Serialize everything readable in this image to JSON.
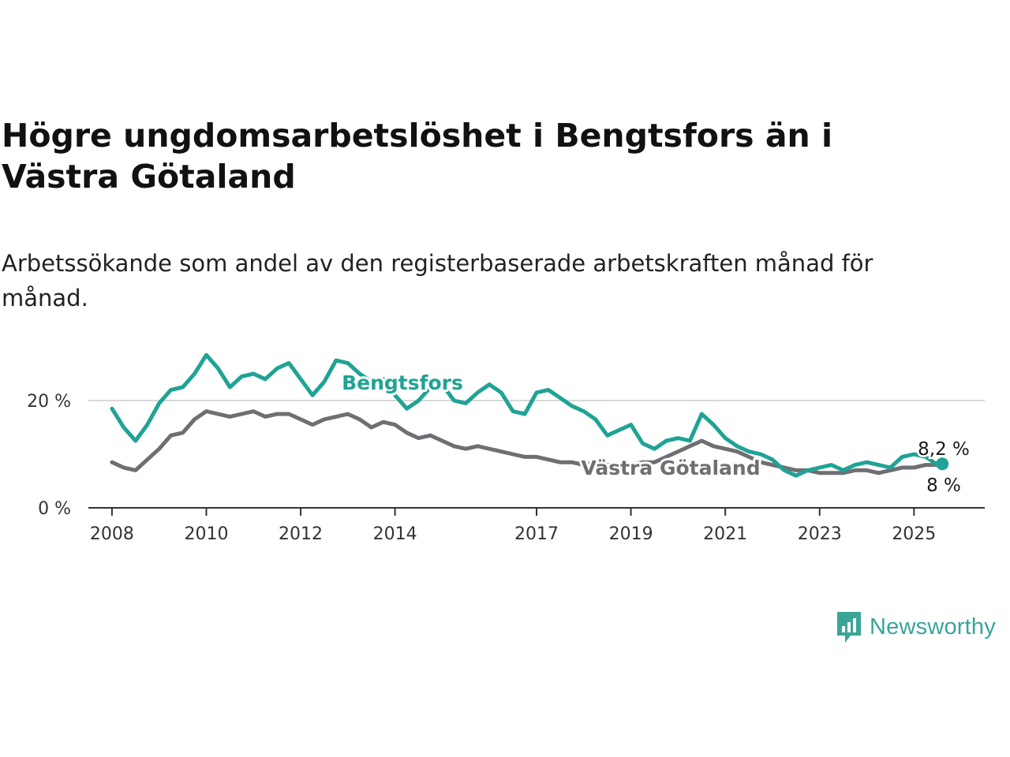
{
  "header": {
    "title": "Högre ungdomsarbetslöshet i Bengtsfors än i Västra Götaland",
    "subtitle": "Arbetssökande som andel av den registerbaserade arbetskraften månad för månad."
  },
  "brand": {
    "name": "Newsworthy",
    "color": "#3aa597",
    "icon": "newsworthy-chart-bubble-icon"
  },
  "chart_data": {
    "type": "line",
    "title": "Högre ungdomsarbetslöshet i Bengtsfors än i Västra Götaland",
    "xlabel": "",
    "ylabel": "",
    "x_ticks": [
      "2008",
      "2010",
      "2012",
      "2014",
      "2017",
      "2019",
      "2021",
      "2023",
      "2025"
    ],
    "y_ticks": [
      "0 %",
      "20 %"
    ],
    "ylim": [
      0,
      30
    ],
    "xlim": [
      2007.5,
      2026.5
    ],
    "grid": "horizontal",
    "series": [
      {
        "name": "Bengtsfors",
        "color": "#1fa394",
        "end_label": "8,2 %",
        "x": [
          2008.0,
          2008.25,
          2008.5,
          2008.75,
          2009.0,
          2009.25,
          2009.5,
          2009.75,
          2010.0,
          2010.25,
          2010.5,
          2010.75,
          2011.0,
          2011.25,
          2011.5,
          2011.75,
          2012.0,
          2012.25,
          2012.5,
          2012.75,
          2013.0,
          2013.25,
          2013.5,
          2013.75,
          2014.0,
          2014.25,
          2014.5,
          2014.75,
          2015.0,
          2015.25,
          2015.5,
          2015.75,
          2016.0,
          2016.25,
          2016.5,
          2016.75,
          2017.0,
          2017.25,
          2017.5,
          2017.75,
          2018.0,
          2018.25,
          2018.5,
          2018.75,
          2019.0,
          2019.25,
          2019.5,
          2019.75,
          2020.0,
          2020.25,
          2020.5,
          2020.75,
          2021.0,
          2021.25,
          2021.5,
          2021.75,
          2022.0,
          2022.25,
          2022.5,
          2022.75,
          2023.0,
          2023.25,
          2023.5,
          2023.75,
          2024.0,
          2024.25,
          2024.5,
          2024.75,
          2025.0,
          2025.25,
          2025.5,
          2025.6
        ],
        "y": [
          18.5,
          15.0,
          12.5,
          15.5,
          19.5,
          22.0,
          22.5,
          25.0,
          28.5,
          26.0,
          22.5,
          24.5,
          25.0,
          24.0,
          26.0,
          27.0,
          24.0,
          21.0,
          23.5,
          27.5,
          27.0,
          25.0,
          23.5,
          24.0,
          21.0,
          18.5,
          20.0,
          22.5,
          23.0,
          20.0,
          19.5,
          21.5,
          23.0,
          21.5,
          18.0,
          17.5,
          21.5,
          22.0,
          20.5,
          19.0,
          18.0,
          16.5,
          13.5,
          14.5,
          15.5,
          12.0,
          11.0,
          12.5,
          13.0,
          12.5,
          17.5,
          15.5,
          13.0,
          11.5,
          10.5,
          10.0,
          9.0,
          7.0,
          6.0,
          7.0,
          7.5,
          8.0,
          7.0,
          8.0,
          8.5,
          8.0,
          7.5,
          9.5,
          10.0,
          9.5,
          8.0,
          8.2
        ]
      },
      {
        "name": "Västra Götaland",
        "color": "#6f6f73",
        "end_label": "8 %",
        "x": [
          2008.0,
          2008.25,
          2008.5,
          2008.75,
          2009.0,
          2009.25,
          2009.5,
          2009.75,
          2010.0,
          2010.25,
          2010.5,
          2010.75,
          2011.0,
          2011.25,
          2011.5,
          2011.75,
          2012.0,
          2012.25,
          2012.5,
          2012.75,
          2013.0,
          2013.25,
          2013.5,
          2013.75,
          2014.0,
          2014.25,
          2014.5,
          2014.75,
          2015.0,
          2015.25,
          2015.5,
          2015.75,
          2016.0,
          2016.25,
          2016.5,
          2016.75,
          2017.0,
          2017.25,
          2017.5,
          2017.75,
          2018.0,
          2018.25,
          2018.5,
          2018.75,
          2019.0,
          2019.25,
          2019.5,
          2019.75,
          2020.0,
          2020.25,
          2020.5,
          2020.75,
          2021.0,
          2021.25,
          2021.5,
          2021.75,
          2022.0,
          2022.25,
          2022.5,
          2022.75,
          2023.0,
          2023.25,
          2023.5,
          2023.75,
          2024.0,
          2024.25,
          2024.5,
          2024.75,
          2025.0,
          2025.25,
          2025.5,
          2025.6
        ],
        "y": [
          8.5,
          7.5,
          7.0,
          9.0,
          11.0,
          13.5,
          14.0,
          16.5,
          18.0,
          17.5,
          17.0,
          17.5,
          18.0,
          17.0,
          17.5,
          17.5,
          16.5,
          15.5,
          16.5,
          17.0,
          17.5,
          16.5,
          15.0,
          16.0,
          15.5,
          14.0,
          13.0,
          13.5,
          12.5,
          11.5,
          11.0,
          11.5,
          11.0,
          10.5,
          10.0,
          9.5,
          9.5,
          9.0,
          8.5,
          8.5,
          8.0,
          8.5,
          8.0,
          8.0,
          8.0,
          8.5,
          8.5,
          9.5,
          10.5,
          11.5,
          12.5,
          11.5,
          11.0,
          10.5,
          9.5,
          8.5,
          8.0,
          7.5,
          7.0,
          7.0,
          6.5,
          6.5,
          6.5,
          7.0,
          7.0,
          6.5,
          7.0,
          7.5,
          7.5,
          8.0,
          8.0,
          8.0
        ]
      }
    ]
  }
}
